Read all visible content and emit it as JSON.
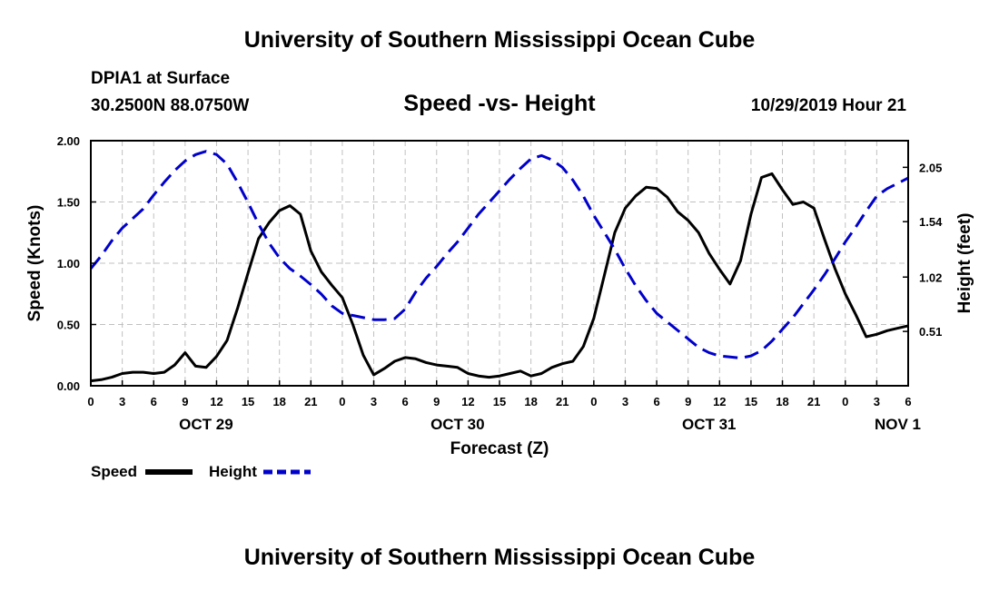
{
  "header": {
    "title": "University of Southern Mississippi Ocean Cube",
    "station": "DPIA1 at Surface",
    "coordinates": "30.2500N 88.0750W",
    "chart_title": "Speed -vs- Height",
    "timestamp": "10/29/2019 Hour 21"
  },
  "footer": {
    "title": "University of Southern Mississippi Ocean Cube"
  },
  "legend": {
    "speed_label": "Speed",
    "height_label": "Height"
  },
  "colors": {
    "speed": "#000000",
    "height": "#0000cc",
    "grid": "#c0c0c0"
  },
  "chart_data": {
    "type": "line",
    "title": "Speed -vs- Height",
    "xlabel": "Forecast (Z)",
    "ylabel": "Speed (Knots)",
    "y2label": "Height (feet)",
    "xlim": [
      0,
      78
    ],
    "ylim": [
      0,
      2.0
    ],
    "y2lim": [
      0.0,
      2.3
    ],
    "grid": true,
    "legend_position": "bottom-left",
    "x_ticks": [
      0,
      3,
      6,
      9,
      12,
      15,
      18,
      21,
      24,
      27,
      30,
      33,
      36,
      39,
      42,
      45,
      48,
      51,
      54,
      57,
      60,
      63,
      66,
      69,
      72,
      75,
      78
    ],
    "x_tick_labels": [
      "0",
      "3",
      "6",
      "9",
      "12",
      "15",
      "18",
      "21",
      "0",
      "3",
      "6",
      "9",
      "12",
      "15",
      "18",
      "21",
      "0",
      "3",
      "6",
      "9",
      "12",
      "15",
      "18",
      "21",
      "0",
      "3",
      "6"
    ],
    "date_labels": [
      {
        "x": 11,
        "label": "OCT 29"
      },
      {
        "x": 35,
        "label": "OCT 30"
      },
      {
        "x": 59,
        "label": "OCT 31"
      },
      {
        "x": 77,
        "label": "NOV 1"
      }
    ],
    "y_ticks": [
      0.0,
      0.5,
      1.0,
      1.5,
      2.0
    ],
    "y_tick_labels": [
      "0.00",
      "0.50",
      "1.00",
      "1.50",
      "2.00"
    ],
    "y2_ticks": [
      0.51,
      1.02,
      1.54,
      2.05
    ],
    "y2_tick_labels": [
      "0.51",
      "1.02",
      "1.54",
      "2.05"
    ],
    "series": [
      {
        "name": "Speed",
        "axis": "left",
        "style": "solid",
        "x": [
          0,
          1,
          2,
          3,
          4,
          5,
          6,
          7,
          8,
          9,
          10,
          11,
          12,
          13,
          14,
          15,
          16,
          17,
          18,
          19,
          20,
          21,
          22,
          23,
          24,
          25,
          26,
          27,
          28,
          29,
          30,
          31,
          32,
          33,
          34,
          35,
          36,
          37,
          38,
          39,
          40,
          41,
          42,
          43,
          44,
          45,
          46,
          47,
          48,
          49,
          50,
          51,
          52,
          53,
          54,
          55,
          56,
          57,
          58,
          59,
          60,
          61,
          62,
          63,
          64,
          65,
          66,
          67,
          68,
          69,
          70,
          71,
          72,
          73,
          74,
          75,
          76,
          77,
          78
        ],
        "values": [
          0.04,
          0.05,
          0.07,
          0.1,
          0.11,
          0.11,
          0.1,
          0.11,
          0.17,
          0.27,
          0.16,
          0.15,
          0.24,
          0.37,
          0.63,
          0.92,
          1.2,
          1.33,
          1.43,
          1.47,
          1.4,
          1.1,
          0.93,
          0.82,
          0.72,
          0.5,
          0.25,
          0.09,
          0.14,
          0.2,
          0.23,
          0.22,
          0.19,
          0.17,
          0.16,
          0.15,
          0.1,
          0.08,
          0.07,
          0.08,
          0.1,
          0.12,
          0.08,
          0.1,
          0.15,
          0.18,
          0.2,
          0.32,
          0.55,
          0.9,
          1.25,
          1.45,
          1.55,
          1.62,
          1.61,
          1.54,
          1.42,
          1.35,
          1.25,
          1.08,
          0.95,
          0.83,
          1.02,
          1.4,
          1.7,
          1.73,
          1.6,
          1.48,
          1.5,
          1.45,
          1.2,
          0.96,
          0.75,
          0.58,
          0.4,
          0.42,
          0.45,
          0.47,
          0.49
        ]
      },
      {
        "name": "Height",
        "axis": "right",
        "style": "dashed",
        "x": [
          0,
          1,
          2,
          3,
          4,
          5,
          6,
          7,
          8,
          9,
          10,
          11,
          12,
          13,
          14,
          15,
          16,
          17,
          18,
          19,
          20,
          21,
          22,
          23,
          24,
          25,
          26,
          27,
          28,
          29,
          30,
          31,
          32,
          33,
          34,
          35,
          36,
          37,
          38,
          39,
          40,
          41,
          42,
          43,
          44,
          45,
          46,
          47,
          48,
          49,
          50,
          51,
          52,
          53,
          54,
          55,
          56,
          57,
          58,
          59,
          60,
          61,
          62,
          63,
          64,
          65,
          66,
          67,
          68,
          69,
          70,
          71,
          72,
          73,
          74,
          75,
          76,
          77,
          78
        ],
        "values": [
          1.1,
          1.22,
          1.36,
          1.48,
          1.57,
          1.66,
          1.79,
          1.91,
          2.02,
          2.11,
          2.17,
          2.2,
          2.17,
          2.08,
          1.91,
          1.72,
          1.52,
          1.34,
          1.2,
          1.1,
          1.03,
          0.95,
          0.86,
          0.75,
          0.68,
          0.66,
          0.64,
          0.62,
          0.62,
          0.63,
          0.72,
          0.88,
          1.01,
          1.12,
          1.24,
          1.35,
          1.48,
          1.61,
          1.72,
          1.83,
          1.94,
          2.04,
          2.13,
          2.16,
          2.12,
          2.05,
          1.93,
          1.78,
          1.6,
          1.44,
          1.28,
          1.1,
          0.94,
          0.8,
          0.68,
          0.6,
          0.52,
          0.44,
          0.36,
          0.31,
          0.28,
          0.27,
          0.26,
          0.28,
          0.33,
          0.42,
          0.53,
          0.64,
          0.77,
          0.9,
          1.04,
          1.19,
          1.35,
          1.49,
          1.64,
          1.78,
          1.85,
          1.9,
          1.95
        ]
      }
    ]
  }
}
